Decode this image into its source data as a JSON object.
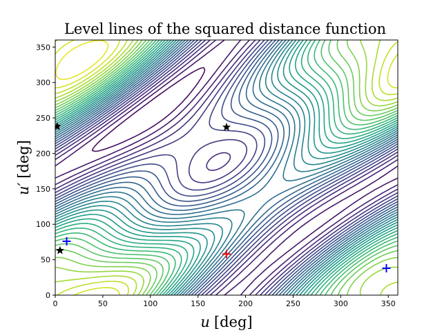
{
  "chart_data": {
    "type": "contour",
    "title": "Level lines of the squared distance function",
    "xlabel_var": "u",
    "xlabel_unit": "[deg]",
    "ylabel_var": "u′",
    "ylabel_unit": "[deg]",
    "xlim": [
      0,
      360
    ],
    "ylim": [
      0,
      360
    ],
    "xticks": [
      "0",
      "50",
      "100",
      "150",
      "200",
      "250",
      "300",
      "350"
    ],
    "yticks": [
      "0",
      "50",
      "100",
      "150",
      "200",
      "250",
      "300",
      "350"
    ],
    "grid": false,
    "colormap": "viridis",
    "level_count": 30,
    "markers": [
      {
        "symbol": "star",
        "color": "#000000",
        "x": 2,
        "y": 238
      },
      {
        "symbol": "star",
        "color": "#000000",
        "x": 180,
        "y": 237
      },
      {
        "symbol": "star",
        "color": "#000000",
        "x": 5,
        "y": 63
      },
      {
        "symbol": "plus",
        "color": "#ff0000",
        "x": 180,
        "y": 58
      },
      {
        "symbol": "plus",
        "color": "#0000ff",
        "x": 12,
        "y": 76
      },
      {
        "symbol": "plus",
        "color": "#0000ff",
        "x": 348,
        "y": 38
      }
    ]
  }
}
